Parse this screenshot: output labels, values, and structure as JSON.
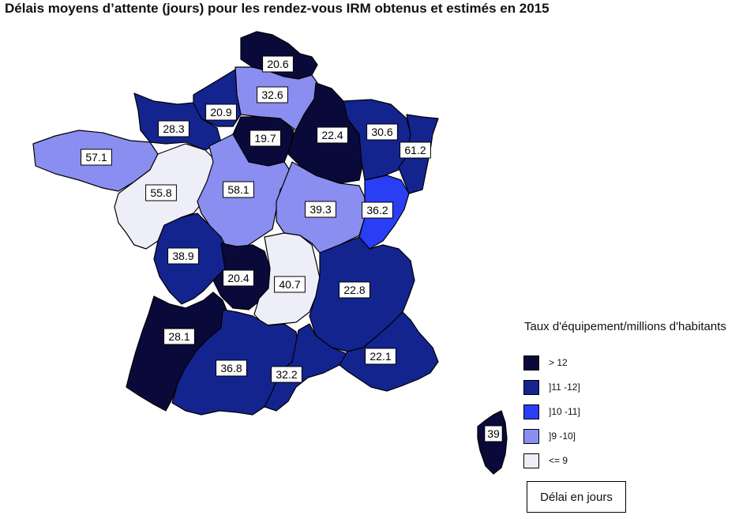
{
  "title": "Délais moyens d’attente (jours) pour les rendez-vous IRM obtenus et estimés en 2015",
  "legend": {
    "title": "Taux d'équipement/millions d'habitants",
    "items": [
      {
        "label": "> 12",
        "color": "#0a0a3a"
      },
      {
        "label": "]11 -12]",
        "color": "#13248f"
      },
      {
        "label": "]10 -11]",
        "color": "#2a3ef5"
      },
      {
        "label": "]9 -10]",
        "color": "#8a8ef0"
      },
      {
        "label": "<= 9",
        "color": "#eeeef8"
      }
    ],
    "delay_label": "Délai en jours"
  },
  "regions": [
    {
      "id": "nord-pas-de-calais",
      "value": "20.6",
      "class": "> 12"
    },
    {
      "id": "picardie",
      "value": "32.6",
      "class": "]9 -10]"
    },
    {
      "id": "haute-normandie",
      "value": "20.9",
      "class": "]11 -12]"
    },
    {
      "id": "basse-normandie",
      "value": "28.3",
      "class": "]11 -12]"
    },
    {
      "id": "ile-de-france",
      "value": "19.7",
      "class": "> 12"
    },
    {
      "id": "champagne-ardenne",
      "value": "22.4",
      "class": "> 12"
    },
    {
      "id": "lorraine",
      "value": "30.6",
      "class": "]11 -12]"
    },
    {
      "id": "alsace",
      "value": "61.2",
      "class": "]11 -12]"
    },
    {
      "id": "bretagne",
      "value": "57.1",
      "class": "]9 -10]"
    },
    {
      "id": "pays-de-la-loire",
      "value": "55.8",
      "class": "<= 9"
    },
    {
      "id": "centre",
      "value": "58.1",
      "class": "]9 -10]"
    },
    {
      "id": "bourgogne",
      "value": "39.3",
      "class": "]9 -10]"
    },
    {
      "id": "franche-comte",
      "value": "36.2",
      "class": "]10 -11]"
    },
    {
      "id": "poitou-charentes",
      "value": "38.9",
      "class": "]11 -12]"
    },
    {
      "id": "limousin",
      "value": "20.4",
      "class": "> 12"
    },
    {
      "id": "auvergne",
      "value": "40.7",
      "class": "<= 9"
    },
    {
      "id": "rhone-alpes",
      "value": "22.8",
      "class": "]11 -12]"
    },
    {
      "id": "aquitaine",
      "value": "28.1",
      "class": "> 12"
    },
    {
      "id": "midi-pyrenees",
      "value": "36.8",
      "class": "]11 -12]"
    },
    {
      "id": "languedoc-roussillon",
      "value": "32.2",
      "class": "]11 -12]"
    },
    {
      "id": "paca",
      "value": "22.1",
      "class": "]11 -12]"
    },
    {
      "id": "corse",
      "value": "39",
      "class": "> 12"
    }
  ]
}
